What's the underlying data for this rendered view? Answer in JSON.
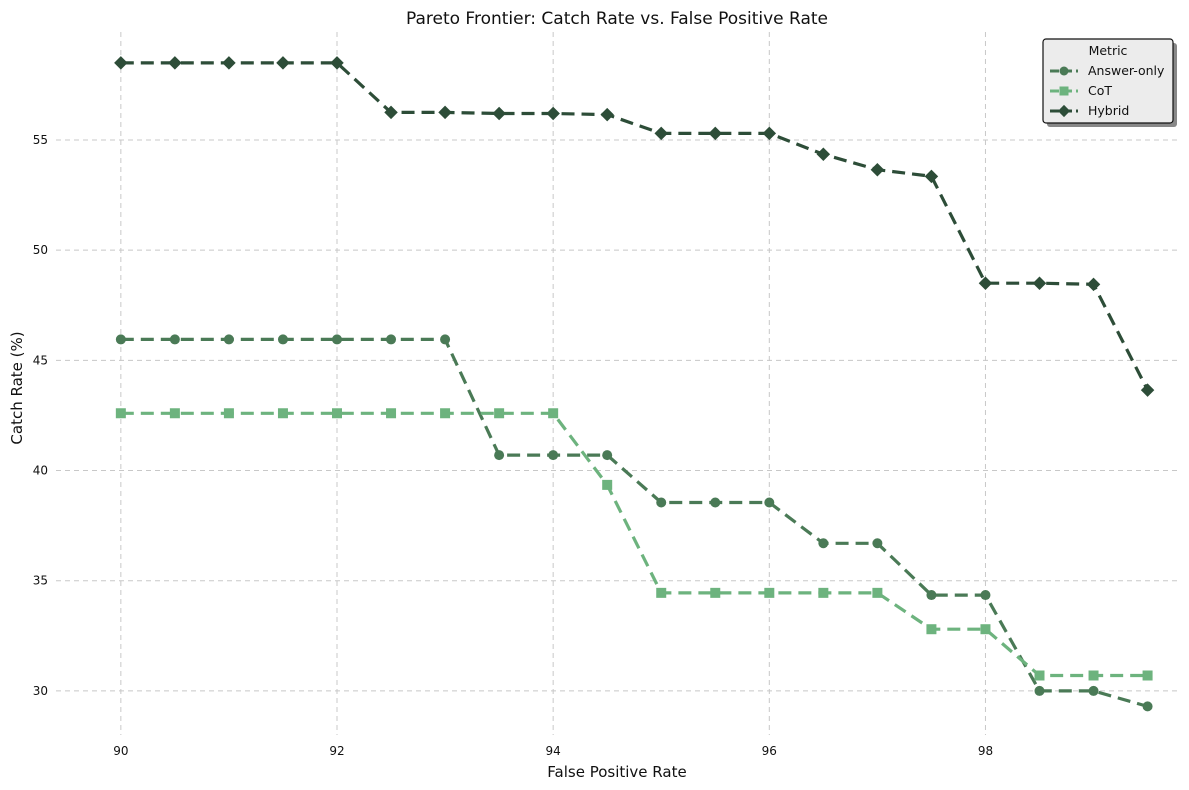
{
  "chart_data": {
    "type": "line",
    "title": "Pareto Frontier: Catch Rate vs. False Positive Rate",
    "xlabel": "False Positive Rate",
    "ylabel": "Catch Rate (%)",
    "xlim": [
      89.4,
      99.8
    ],
    "ylim": [
      28.0,
      59.9
    ],
    "xticks": [
      90,
      92,
      94,
      96,
      98
    ],
    "yticks": [
      30,
      35,
      40,
      45,
      50,
      55
    ],
    "grid": true,
    "legend": {
      "title": "Metric",
      "position": "top-right"
    },
    "x": [
      90,
      90.5,
      91,
      91.5,
      92,
      92.5,
      93,
      93.5,
      94,
      94.5,
      95,
      95.5,
      96,
      96.5,
      97,
      97.5,
      98,
      98.5,
      99,
      99.5
    ],
    "series": [
      {
        "name": "Answer-only",
        "color": "#4a7a56",
        "marker": "circle",
        "values": [
          45.95,
          45.95,
          45.95,
          45.95,
          45.95,
          45.95,
          45.95,
          40.7,
          40.7,
          40.7,
          38.55,
          38.55,
          38.55,
          36.7,
          36.7,
          34.35,
          34.35,
          30.0,
          30.0,
          29.3
        ]
      },
      {
        "name": "CoT",
        "color": "#6db37e",
        "marker": "square",
        "values": [
          42.6,
          42.6,
          42.6,
          42.6,
          42.6,
          42.6,
          42.6,
          42.6,
          42.6,
          39.35,
          34.45,
          34.45,
          34.45,
          34.45,
          34.45,
          32.8,
          32.8,
          30.7,
          30.7,
          30.7
        ]
      },
      {
        "name": "Hybrid",
        "color": "#2d4d38",
        "marker": "diamond",
        "values": [
          58.5,
          58.5,
          58.5,
          58.5,
          58.5,
          56.25,
          56.25,
          56.2,
          56.2,
          56.15,
          55.3,
          55.3,
          55.3,
          54.35,
          53.65,
          53.35,
          48.5,
          48.5,
          48.45,
          43.65
        ]
      }
    ]
  }
}
